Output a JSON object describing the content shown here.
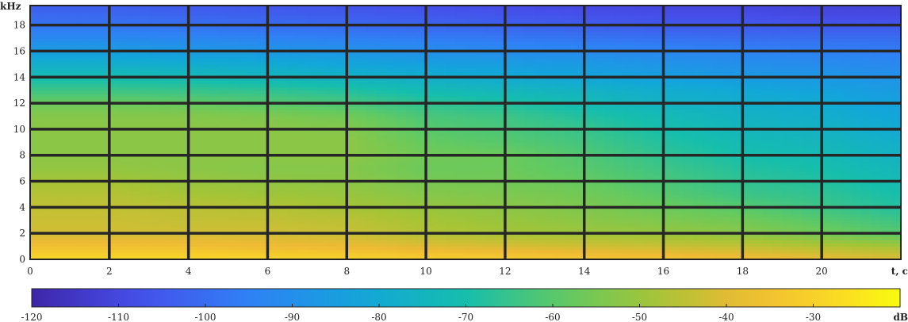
{
  "chart_data": {
    "type": "heatmap",
    "title": "",
    "xlabel": "t, c",
    "ylabel": "kHz",
    "colorbar_label": "dB",
    "xlim": [
      0,
      22
    ],
    "ylim": [
      0,
      19.5
    ],
    "x_ticks": [
      0,
      2,
      4,
      6,
      8,
      10,
      12,
      14,
      16,
      18,
      20
    ],
    "y_ticks": [
      0,
      2,
      4,
      6,
      8,
      10,
      12,
      14,
      16,
      18
    ],
    "colorbar_ticks": [
      -120,
      -110,
      -100,
      -90,
      -80,
      -70,
      -60,
      -50,
      -40,
      -30
    ],
    "colorbar_range": [
      -120,
      -20
    ],
    "grid": true,
    "colormap": "parula",
    "x": [
      0,
      2,
      4,
      6,
      8,
      10,
      12,
      14,
      16,
      18,
      20,
      22
    ],
    "y": [
      0,
      1,
      2,
      3,
      4,
      5,
      6,
      7,
      8,
      9,
      10,
      11,
      12,
      13,
      14,
      15,
      16,
      17,
      18,
      19,
      19.5
    ],
    "z": [
      [
        -27,
        -27,
        -27,
        -28,
        -29,
        -30,
        -31,
        -33,
        -34,
        -36,
        -38,
        -40
      ],
      [
        -36,
        -36,
        -36,
        -37,
        -38,
        -40,
        -41,
        -42,
        -43,
        -44,
        -46,
        -48
      ],
      [
        -42,
        -42,
        -42,
        -42,
        -43,
        -46,
        -48,
        -49,
        -50,
        -52,
        -56,
        -60
      ],
      [
        -43,
        -43,
        -44,
        -44,
        -45,
        -48,
        -50,
        -52,
        -54,
        -56,
        -60,
        -64
      ],
      [
        -44,
        -44,
        -45,
        -46,
        -48,
        -50,
        -52,
        -54,
        -57,
        -60,
        -64,
        -68
      ],
      [
        -46,
        -46,
        -48,
        -49,
        -50,
        -53,
        -54,
        -56,
        -60,
        -64,
        -66,
        -70
      ],
      [
        -48,
        -48,
        -50,
        -51,
        -52,
        -55,
        -56,
        -58,
        -62,
        -66,
        -68,
        -72
      ],
      [
        -51,
        -51,
        -52,
        -53,
        -53,
        -57,
        -57,
        -60,
        -64,
        -68,
        -70,
        -74
      ],
      [
        -52,
        -52,
        -52,
        -52,
        -52,
        -56,
        -57,
        -61,
        -66,
        -70,
        -72,
        -76
      ],
      [
        -52,
        -52,
        -52,
        -52,
        -52,
        -58,
        -60,
        -63,
        -68,
        -72,
        -74,
        -78
      ],
      [
        -52,
        -52,
        -52,
        -52,
        -53,
        -60,
        -62,
        -65,
        -70,
        -74,
        -76,
        -80
      ],
      [
        -53,
        -53,
        -53,
        -54,
        -56,
        -62,
        -64,
        -68,
        -72,
        -76,
        -78,
        -82
      ],
      [
        -57,
        -57,
        -58,
        -60,
        -62,
        -66,
        -68,
        -72,
        -76,
        -78,
        -80,
        -84
      ],
      [
        -64,
        -64,
        -65,
        -66,
        -68,
        -72,
        -74,
        -76,
        -79,
        -81,
        -83,
        -86
      ],
      [
        -71,
        -71,
        -72,
        -74,
        -76,
        -78,
        -80,
        -82,
        -84,
        -86,
        -87,
        -89
      ],
      [
        -78,
        -78,
        -79,
        -80,
        -82,
        -84,
        -85,
        -86,
        -88,
        -90,
        -91,
        -92
      ],
      [
        -85,
        -85,
        -86,
        -87,
        -88,
        -90,
        -91,
        -92,
        -93,
        -94,
        -95,
        -96
      ],
      [
        -92,
        -92,
        -93,
        -94,
        -95,
        -96,
        -97,
        -98,
        -99,
        -100,
        -100,
        -100
      ],
      [
        -98,
        -98,
        -99,
        -100,
        -101,
        -102,
        -103,
        -104,
        -105,
        -105,
        -106,
        -106
      ],
      [
        -102,
        -102,
        -103,
        -104,
        -105,
        -106,
        -107,
        -108,
        -109,
        -109,
        -110,
        -110
      ],
      [
        -104,
        -104,
        -105,
        -106,
        -107,
        -108,
        -109,
        -110,
        -110,
        -110,
        -111,
        -111
      ]
    ]
  }
}
